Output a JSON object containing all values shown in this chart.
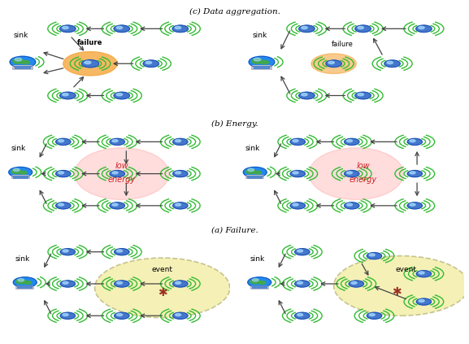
{
  "captions": [
    "(a) Failure.",
    "(b) Energy.",
    "(c) Data aggregation."
  ],
  "bg_color": "#ffffff",
  "wave_color": "#33bb33",
  "arrow_color": "#444444",
  "failure_fill": "#f5a030",
  "failure_alpha": 0.75,
  "energy_fill": "#ff6666",
  "energy_alpha": 0.22,
  "event_fill": "#f0e890",
  "event_alpha": 0.65,
  "dashed_circle_color": "#aaaa66",
  "node_blue": "#4477cc",
  "node_highlight": "#88bbff",
  "sink_globe_color": "#2288ee",
  "sink_land_color": "#44aa44"
}
